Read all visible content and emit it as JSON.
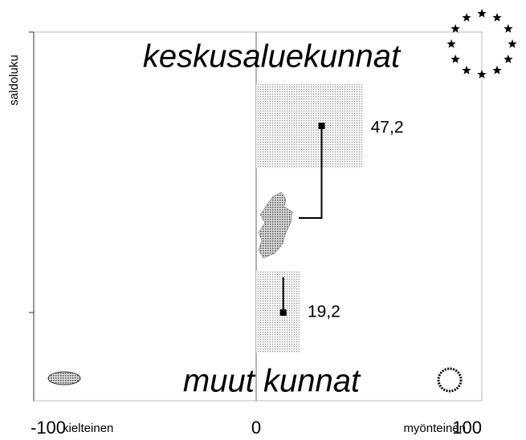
{
  "chart_data": {
    "type": "bar",
    "orientation": "horizontal",
    "y_label": "saldoluku",
    "x_label_left": "kielteinen",
    "x_label_right": "myönteinen",
    "categories": [
      "keskusaluekunnat",
      "muut kunnat"
    ],
    "series": [
      {
        "color": "#c8c8c8",
        "values": [
          47.2,
          19.2
        ],
        "value_labels": [
          "47,2",
          "19,2"
        ]
      },
      {
        "color": "#000000",
        "values": [
          29,
          12
        ]
      }
    ],
    "xlim": [
      -100,
      100
    ],
    "xticks": [
      -100,
      0,
      100
    ],
    "grid": false
  }
}
